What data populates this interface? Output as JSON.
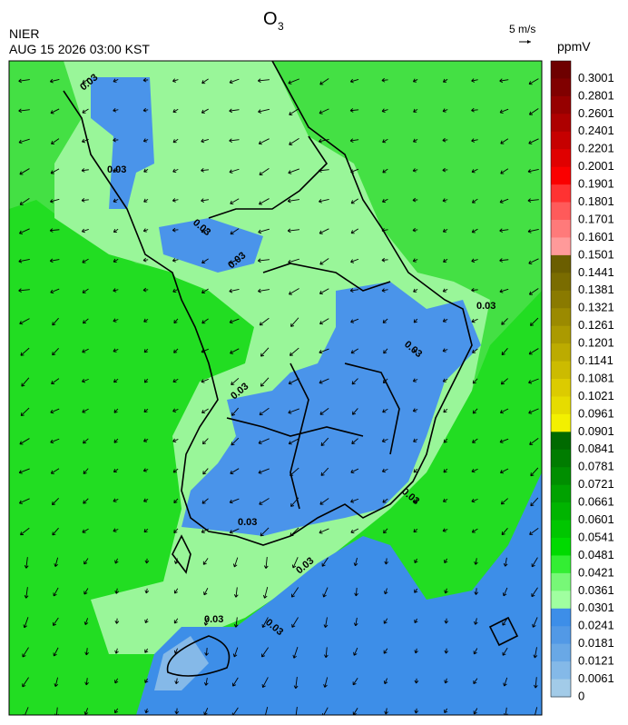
{
  "header": {
    "title": "O",
    "title_sub": "3",
    "agency": "NIER",
    "datetime": "AUG 15 2026 03:00 KST",
    "wind_scale": "5 m/s"
  },
  "colorbar": {
    "unit": "ppmV",
    "levels": [
      "0.3001",
      "0.2801",
      "0.2601",
      "0.2401",
      "0.2201",
      "0.2001",
      "0.1901",
      "0.1801",
      "0.1701",
      "0.1601",
      "0.1501",
      "0.1441",
      "0.1381",
      "0.1321",
      "0.1261",
      "0.1201",
      "0.1141",
      "0.1081",
      "0.1021",
      "0.0961",
      "0.0901",
      "0.0841",
      "0.0781",
      "0.0721",
      "0.0661",
      "0.0601",
      "0.0541",
      "0.0481",
      "0.0421",
      "0.0361",
      "0.0301",
      "0.0241",
      "0.0181",
      "0.0121",
      "0.0061",
      "0"
    ],
    "colors": [
      "#6e0000",
      "#800000",
      "#960000",
      "#ad0000",
      "#c60000",
      "#e00000",
      "#fa0000",
      "#ff3232",
      "#ff5a5a",
      "#ff7a7a",
      "#ff9a9a",
      "#6b5e00",
      "#7a6c00",
      "#8a7a00",
      "#9b8a00",
      "#ab9a00",
      "#bcab00",
      "#ccbb00",
      "#dccb00",
      "#e6dc00",
      "#f3f000",
      "#006a00",
      "#007c00",
      "#008e00",
      "#00a200",
      "#00b400",
      "#00c600",
      "#00da00",
      "#33ee33",
      "#77f877",
      "#a0ffa0",
      "#3d8ee8",
      "#5299e6",
      "#69a8e6",
      "#84b9e8",
      "#a2cbe8"
    ]
  },
  "map": {
    "contour_labels": [
      "0.03",
      "0.03",
      "0.03",
      "0.03",
      "0.03",
      "0.03",
      "0.03",
      "0.03",
      "0.03",
      "0.03",
      "0.03",
      "0.03"
    ]
  }
}
